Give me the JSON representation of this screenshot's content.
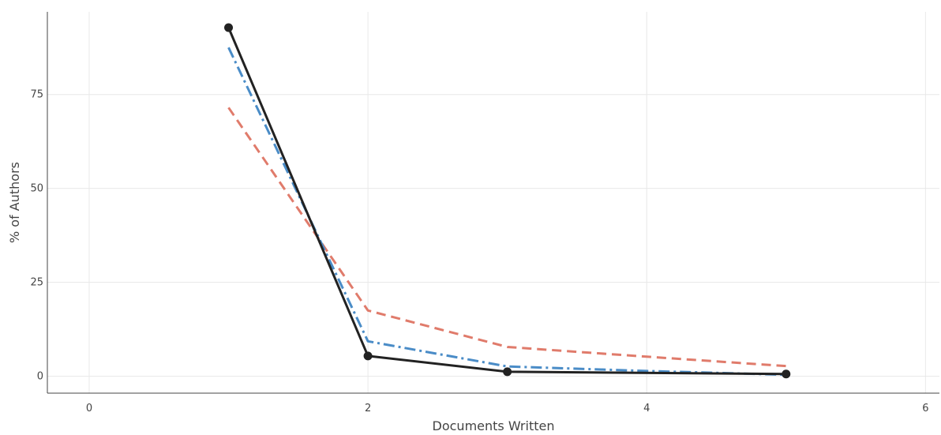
{
  "chart_data": {
    "type": "line",
    "title": "",
    "xlabel": "Documents Written",
    "ylabel": "% of Authors",
    "xlim": [
      -0.3,
      6.1
    ],
    "ylim": [
      -4.5,
      97
    ],
    "x_ticks": [
      0,
      2,
      4,
      6
    ],
    "y_ticks": [
      0,
      25,
      50,
      75
    ],
    "grid": true,
    "legend": "none",
    "series": [
      {
        "style": "dashed",
        "color": "#e07b6b",
        "markers": false,
        "x": [
          1,
          2,
          3,
          4,
          5
        ],
        "y": [
          71.5,
          17.5,
          7.8,
          5.2,
          2.7
        ]
      },
      {
        "style": "dashdot",
        "color": "#4a8cc7",
        "markers": false,
        "x": [
          1,
          2,
          3,
          4,
          5
        ],
        "y": [
          87.5,
          9.3,
          2.6,
          1.4,
          0.4
        ]
      },
      {
        "style": "solid",
        "color": "#222222",
        "markers": true,
        "x": [
          1,
          2,
          3,
          4,
          5
        ],
        "y": [
          92.8,
          5.4,
          1.2,
          null,
          0.6
        ]
      }
    ]
  }
}
